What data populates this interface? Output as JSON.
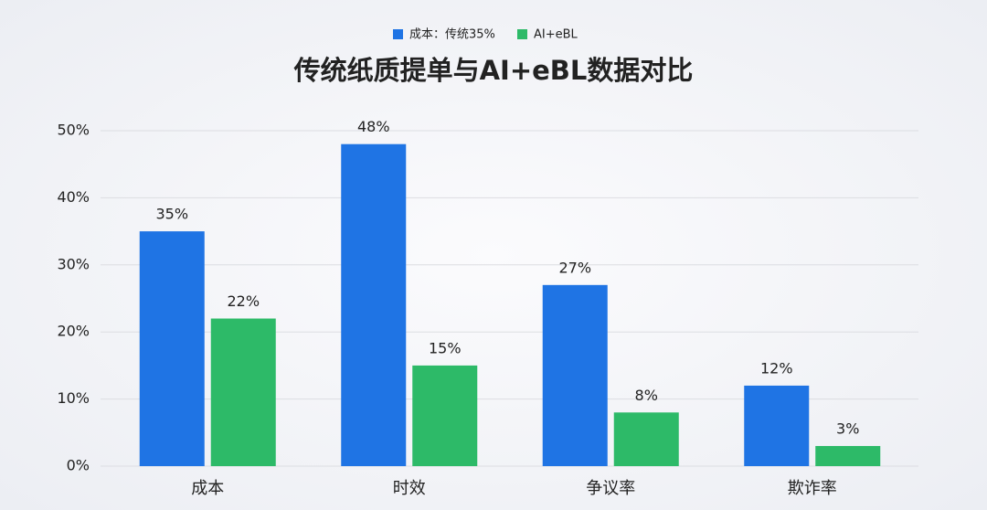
{
  "chart_data": {
    "type": "bar",
    "title": "传统纸质提单与AI+eBL数据对比",
    "categories": [
      "成本",
      "时效",
      "争议率",
      "欺诈率"
    ],
    "series": [
      {
        "name": "成本：传统35%",
        "color": "#1f74e4",
        "values": [
          35,
          48,
          27,
          12
        ],
        "value_labels": [
          "35%",
          "48%",
          "27%",
          "12%"
        ]
      },
      {
        "name": "AI+eBL",
        "color": "#2dba68",
        "values": [
          22,
          15,
          8,
          3
        ],
        "value_labels": [
          "22%",
          "15%",
          "8%",
          "3%"
        ]
      }
    ],
    "ylim": [
      0,
      50
    ],
    "yticks": [
      {
        "value": 0,
        "label": "0%"
      },
      {
        "value": 10,
        "label": "10%"
      },
      {
        "value": 20,
        "label": "20%"
      },
      {
        "value": 30,
        "label": "30%"
      },
      {
        "value": 40,
        "label": "40%"
      },
      {
        "value": 50,
        "label": "50%"
      }
    ],
    "grid": true,
    "legend": "top"
  }
}
